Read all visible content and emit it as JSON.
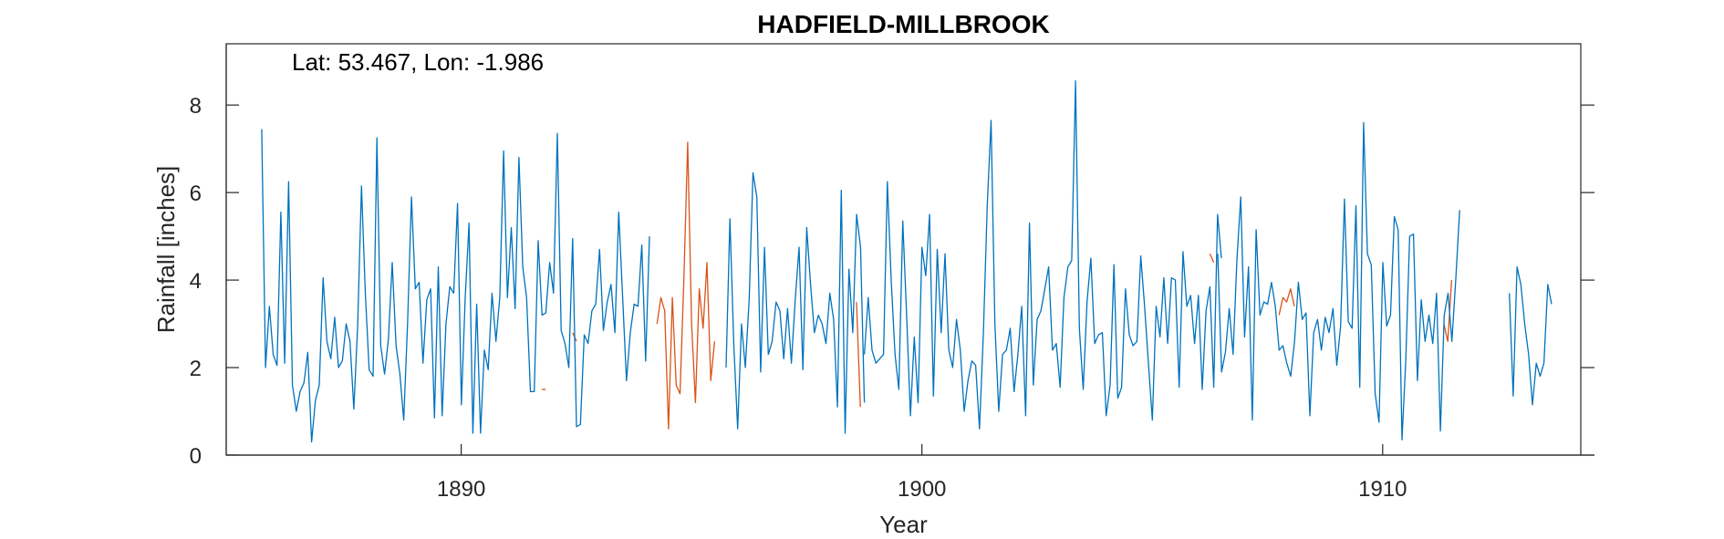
{
  "chart_data": {
    "type": "line",
    "title": "HADFIELD-MILLBROOK",
    "annotation": "Lat: 53.467, Lon: -1.986",
    "xlabel": "Year",
    "ylabel": "Rainfall [inches]",
    "xlim": [
      1884.9,
      1914.3
    ],
    "ylim": [
      0,
      9.4
    ],
    "xticks": [
      1890,
      1900,
      1910
    ],
    "yticks": [
      0,
      2,
      4,
      6,
      8
    ],
    "grid": false,
    "series": [
      {
        "color": "#D95319",
        "segments": [
          {
            "x0": 1891.75,
            "values": [
              1.5,
              1.5
            ]
          },
          {
            "x0": 1892.42,
            "values": [
              2.8,
              2.6
            ]
          },
          {
            "x0": 1894.25,
            "values": [
              3.0,
              3.6,
              3.3,
              0.6,
              3.6,
              1.6,
              1.4,
              4.0,
              7.15,
              3.0,
              1.2,
              3.8,
              2.9,
              4.4,
              1.7,
              2.6
            ]
          },
          {
            "x0": 1898.58,
            "values": [
              3.5,
              1.1
            ]
          },
          {
            "x0": 1906.25,
            "values": [
              4.6,
              4.4
            ]
          },
          {
            "x0": 1907.75,
            "values": [
              3.2,
              3.6,
              3.5,
              3.8,
              3.4
            ]
          },
          {
            "x0": 1911.33,
            "values": [
              3.0,
              2.6,
              4.0
            ]
          }
        ]
      },
      {
        "color": "#0072BD",
        "segments": [
          {
            "x0": 1885.67,
            "values": [
              7.45,
              2.0,
              3.4,
              2.3,
              2.05,
              5.55,
              2.1,
              6.25,
              1.6,
              1.0,
              1.45,
              1.65,
              2.35,
              0.3,
              1.25,
              1.6,
              4.05,
              2.6,
              2.2,
              3.15,
              2.0,
              2.15,
              3.0,
              2.6,
              1.05,
              2.95,
              6.15,
              3.7,
              1.95,
              1.8,
              7.25,
              2.5,
              1.85,
              2.65,
              4.4,
              2.5,
              1.85,
              0.8,
              3.0,
              5.9,
              3.8,
              3.95,
              2.1,
              3.55,
              3.8,
              0.85,
              4.3,
              0.9,
              3.0,
              3.85,
              3.7,
              5.75,
              1.15,
              3.6,
              5.3,
              0.5,
              3.45,
              0.5,
              2.4,
              1.95,
              3.7,
              2.6,
              3.6,
              6.95,
              3.6,
              5.2,
              3.35,
              6.8,
              4.3,
              3.6,
              1.45,
              1.45,
              4.9,
              3.2,
              3.25,
              4.4,
              3.7,
              7.35,
              2.85,
              2.55,
              2.0,
              4.95,
              0.65,
              0.7,
              2.75,
              2.55,
              3.3,
              3.45,
              4.7,
              2.85,
              3.5,
              3.9,
              2.8,
              5.55,
              3.6,
              1.7,
              2.8,
              3.45,
              3.4,
              4.8,
              2.15,
              5.0
            ]
          },
          {
            "x0": 1895.75,
            "values": [
              2.0,
              5.4,
              2.5,
              0.6,
              3.0,
              2.0,
              3.55,
              6.45,
              5.9,
              1.9,
              4.75,
              2.3,
              2.6,
              3.5,
              3.3,
              2.2,
              3.35,
              2.1,
              3.55,
              4.75,
              1.95,
              5.2,
              3.9,
              2.8,
              3.2,
              3.0,
              2.55,
              3.7,
              3.1,
              1.1,
              6.05,
              0.5,
              4.25,
              2.8,
              5.5,
              4.75,
              1.2
            ]
          },
          {
            "x0": 1898.75,
            "values": [
              2.3,
              3.6,
              2.4,
              2.1,
              2.2,
              2.3,
              6.25,
              4.0,
              2.3,
              1.5,
              5.35,
              3.2,
              0.9,
              2.7,
              1.2,
              4.75,
              4.1,
              5.5,
              1.35,
              4.7,
              2.8,
              4.6,
              2.4,
              2.0,
              3.1,
              2.4,
              1.0,
              1.7,
              2.15,
              2.05,
              0.6,
              2.8,
              5.7,
              7.65,
              3.0,
              1.0,
              2.3,
              2.4,
              2.9,
              1.45,
              2.3,
              3.4,
              0.9,
              5.3,
              1.6,
              3.1,
              3.3,
              3.8,
              4.3,
              2.4,
              2.55,
              1.55,
              3.6,
              4.3,
              4.45,
              8.55,
              2.9,
              1.5,
              3.5,
              4.5,
              2.55,
              2.75,
              2.8,
              0.9,
              1.6,
              4.35,
              1.3,
              1.55,
              3.8,
              2.75,
              2.5,
              2.6,
              4.55,
              3.4,
              2.1,
              0.8,
              3.4,
              2.7,
              4.05,
              2.55,
              4.05,
              4.0,
              1.55,
              4.65,
              3.4,
              3.65,
              2.55,
              3.65,
              1.5,
              3.3,
              3.85,
              1.55,
              5.5,
              4.5
            ]
          },
          {
            "x0": 1906.42,
            "values": [
              4.6,
              1.9,
              2.35,
              3.35,
              2.3,
              4.45,
              5.9,
              2.7,
              4.3,
              0.8,
              5.15,
              3.2,
              3.5,
              3.45,
              3.95,
              3.4,
              2.4,
              2.5,
              2.1,
              1.8,
              2.6,
              3.95,
              3.1,
              3.25,
              0.9,
              2.8,
              3.1,
              2.4,
              3.15,
              2.8,
              3.35,
              2.05,
              2.95,
              5.85,
              3.05,
              2.9,
              5.7,
              1.55,
              7.6,
              4.6,
              4.35,
              1.4,
              0.75,
              4.4,
              2.95,
              3.2,
              5.45,
              5.15,
              0.35,
              2.2,
              5.0,
              5.05,
              1.7,
              3.55,
              2.6,
              3.2,
              2.55,
              3.7,
              0.55,
              3.2,
              3.7,
              2.6,
              4.0,
              5.6
            ]
          },
          {
            "x0": 1912.75,
            "values": [
              3.7,
              1.35,
              4.3,
              3.9,
              3.0,
              2.3,
              1.15,
              2.1,
              1.8,
              2.1,
              3.9,
              3.45
            ]
          }
        ]
      }
    ]
  }
}
